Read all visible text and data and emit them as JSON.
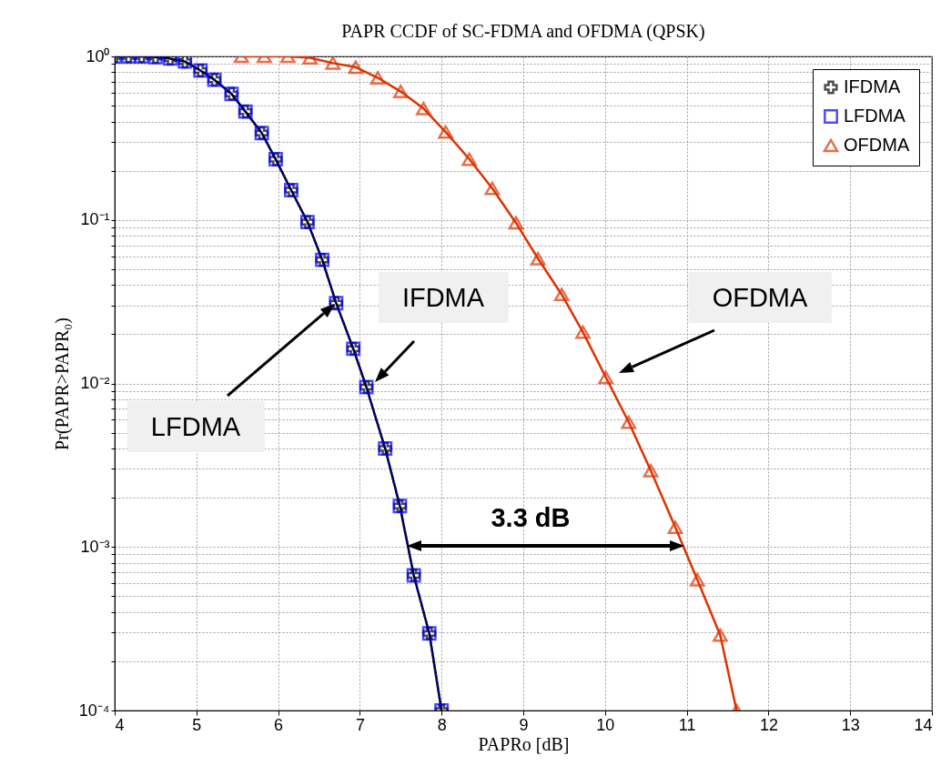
{
  "chart_data": {
    "type": "line",
    "title": "PAPR CCDF of SC-FDMA and OFDMA (QPSK)",
    "xlabel": "PAPRo [dB]",
    "ylabel": "Pr(PAPR>PAPR₀)",
    "log": "y",
    "grid": true,
    "legend": "top right",
    "xlim": [
      4,
      14
    ],
    "xticks": [
      4,
      5,
      6,
      7,
      8,
      9,
      10,
      11,
      12,
      13,
      14
    ],
    "ylim": [
      0.0001,
      1
    ],
    "yticks": [
      {
        "value": 0.0001,
        "label": "10⁻⁴"
      },
      {
        "value": 0.0002,
        "label": null
      },
      {
        "value": 0.0003,
        "label": null
      },
      {
        "value": 0.0004,
        "label": null
      },
      {
        "value": 0.0005,
        "label": null
      },
      {
        "value": 0.0006,
        "label": null
      },
      {
        "value": 0.0007,
        "label": null
      },
      {
        "value": 0.0008,
        "label": null
      },
      {
        "value": 0.0009,
        "label": null
      },
      {
        "value": 0.001,
        "label": "10⁻³"
      },
      {
        "value": 0.002,
        "label": null
      },
      {
        "value": 0.003,
        "label": null
      },
      {
        "value": 0.004,
        "label": null
      },
      {
        "value": 0.005,
        "label": null
      },
      {
        "value": 0.006,
        "label": null
      },
      {
        "value": 0.007,
        "label": null
      },
      {
        "value": 0.008,
        "label": null
      },
      {
        "value": 0.009,
        "label": null
      },
      {
        "value": 0.01,
        "label": "10⁻²"
      },
      {
        "value": 0.02,
        "label": null
      },
      {
        "value": 0.03,
        "label": null
      },
      {
        "value": 0.04,
        "label": null
      },
      {
        "value": 0.05,
        "label": null
      },
      {
        "value": 0.06,
        "label": null
      },
      {
        "value": 0.07,
        "label": null
      },
      {
        "value": 0.08,
        "label": null
      },
      {
        "value": 0.09,
        "label": null
      },
      {
        "value": 0.1,
        "label": "10⁻¹"
      },
      {
        "value": 0.2,
        "label": null
      },
      {
        "value": 0.3,
        "label": null
      },
      {
        "value": 0.4,
        "label": null
      },
      {
        "value": 0.5,
        "label": null
      },
      {
        "value": 0.6,
        "label": null
      },
      {
        "value": 0.7,
        "label": null
      },
      {
        "value": 0.8,
        "label": null
      },
      {
        "value": 0.9,
        "label": null
      },
      {
        "value": 1,
        "label": "10⁰"
      }
    ],
    "series": [
      {
        "name": "IFDMA",
        "color": "#000000",
        "marker": "cross",
        "line_style": "solid",
        "x": [
          4.0,
          4.17,
          4.33,
          4.5,
          4.68,
          4.86,
          5.05,
          5.22,
          5.43,
          5.6,
          5.8,
          5.97,
          6.16,
          6.36,
          6.54,
          6.71,
          6.92,
          7.08,
          7.31,
          7.49,
          7.66,
          7.85,
          8.0
        ],
        "values": [
          1,
          1,
          1,
          0.99,
          0.97,
          0.93,
          0.82,
          0.72,
          0.59,
          0.46,
          0.34,
          0.235,
          0.152,
          0.097,
          0.057,
          0.031,
          0.0163,
          0.0095,
          0.004,
          0.00178,
          0.00067,
          0.000296,
          0.0001
        ]
      },
      {
        "name": "LFDMA",
        "color": "#0000ff",
        "marker": "square",
        "line_style": "dotted",
        "x": [
          4.0,
          4.17,
          4.33,
          4.5,
          4.68,
          4.86,
          5.05,
          5.22,
          5.43,
          5.6,
          5.8,
          5.97,
          6.16,
          6.36,
          6.54,
          6.71,
          6.92,
          7.08,
          7.31,
          7.49,
          7.66,
          7.85,
          8.0
        ],
        "values": [
          1,
          1,
          1,
          0.99,
          0.97,
          0.93,
          0.82,
          0.72,
          0.59,
          0.46,
          0.34,
          0.235,
          0.152,
          0.097,
          0.057,
          0.031,
          0.0163,
          0.0095,
          0.004,
          0.00178,
          0.00067,
          0.000296,
          0.0001
        ]
      },
      {
        "name": "OFDMA",
        "color": "#dd3300",
        "marker": "triangle",
        "line_style": "solid",
        "x": [
          5.55,
          5.83,
          6.12,
          6.39,
          6.67,
          6.95,
          7.22,
          7.5,
          7.78,
          8.05,
          8.34,
          8.62,
          8.91,
          9.18,
          9.47,
          9.73,
          10.01,
          10.29,
          10.56,
          10.86,
          11.13,
          11.41,
          11.61
        ],
        "values": [
          1,
          1,
          1,
          0.98,
          0.91,
          0.86,
          0.74,
          0.61,
          0.48,
          0.345,
          0.235,
          0.156,
          0.096,
          0.058,
          0.035,
          0.0206,
          0.0109,
          0.0058,
          0.00293,
          0.00132,
          0.00063,
          0.000289,
          0.0001
        ]
      }
    ],
    "annotations": [
      "LFDMA",
      "IFDMA",
      "OFDMA",
      "3.3 dB"
    ]
  }
}
